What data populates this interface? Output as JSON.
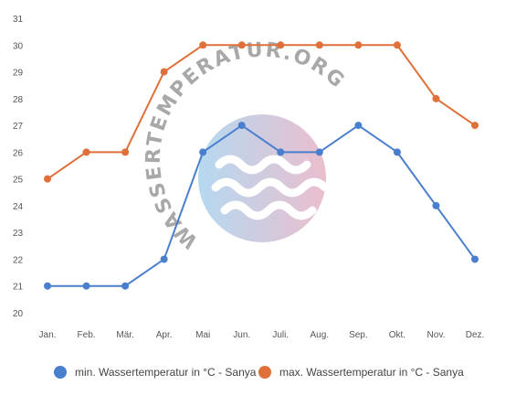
{
  "watermark": {
    "text": "WASSERTEMPERATUR.ORG"
  },
  "chart_data": {
    "type": "line",
    "categories": [
      "Jan.",
      "Feb.",
      "Mär.",
      "Apr.",
      "Mai",
      "Jun.",
      "Juli.",
      "Aug.",
      "Sep.",
      "Okt.",
      "Nov.",
      "Dez."
    ],
    "ylim": [
      20,
      31
    ],
    "yticks": [
      20,
      21,
      22,
      23,
      24,
      25,
      26,
      27,
      28,
      29,
      30,
      31
    ],
    "grid": false,
    "legend_position": "bottom",
    "series": [
      {
        "name": "min. Wassertemperatur in °C - Sanya",
        "color": "#4a7fce",
        "values": [
          21,
          21,
          21,
          22,
          26,
          27,
          26,
          26,
          27,
          26,
          24,
          22
        ]
      },
      {
        "name": "max. Wassertemperatur in °C - Sanya",
        "color": "#e0703a",
        "values": [
          25,
          26,
          26,
          29,
          30,
          30,
          30,
          30,
          30,
          30,
          28,
          27
        ]
      }
    ]
  }
}
